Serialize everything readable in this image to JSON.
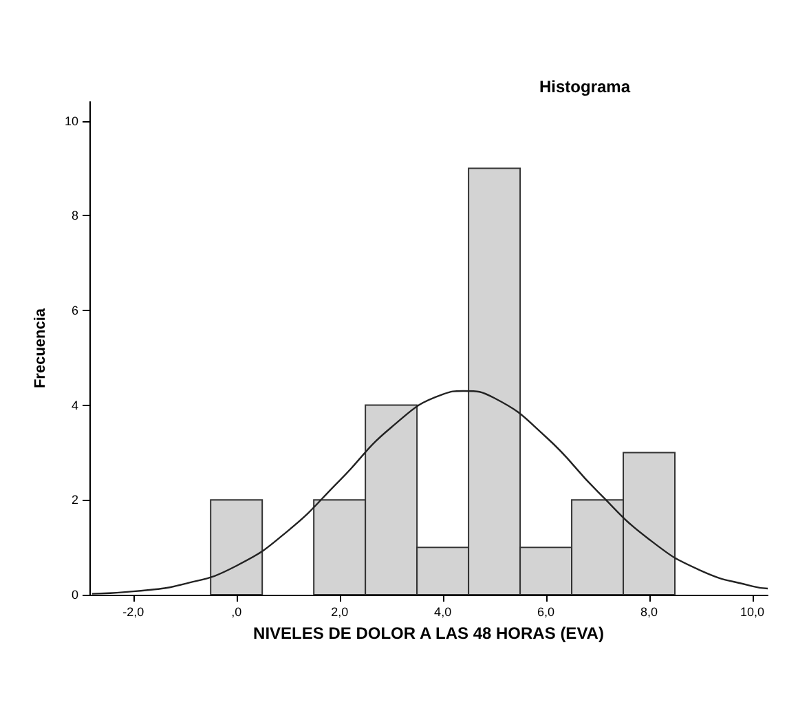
{
  "chart_data": {
    "type": "histogram",
    "title": "Histograma",
    "xlabel": "NIVELES DE DOLOR A LAS 48 HORAS (EVA)",
    "ylabel": "Frecuencia",
    "bins": [
      -0.5,
      0.5,
      1.5,
      2.5,
      3.5,
      4.5,
      5.5,
      6.5,
      7.5,
      8.5
    ],
    "values": [
      2,
      0,
      2,
      4,
      1,
      9,
      1,
      2,
      3
    ],
    "color": "#d3d3d3",
    "series": [
      {
        "type": "line",
        "color": "#222222",
        "x": [
          -2.8,
          -2,
          -1,
          0,
          1,
          2,
          3,
          4,
          4.4,
          5,
          6,
          7,
          8,
          9,
          10,
          10.3
        ],
        "values": [
          0.02,
          0.07,
          0.23,
          0.61,
          1.35,
          2.41,
          3.53,
          4.23,
          4.3,
          4.15,
          3.33,
          2.18,
          1.17,
          0.51,
          0.18,
          0.13
        ]
      }
    ],
    "xlim": [
      -2.85,
      10.3
    ],
    "xticks": [
      {
        "value": -2,
        "label": "-2,0"
      },
      {
        "value": 0,
        "label": ",0"
      },
      {
        "value": 2,
        "label": "2,0"
      },
      {
        "value": 4,
        "label": "4,0"
      },
      {
        "value": 6,
        "label": "6,0"
      },
      {
        "value": 8,
        "label": "8,0"
      },
      {
        "value": 10,
        "label": "10,0"
      }
    ],
    "ylim": [
      0,
      10.4
    ],
    "yticks": [
      0,
      2,
      4,
      6,
      8,
      10
    ],
    "grid": false
  }
}
